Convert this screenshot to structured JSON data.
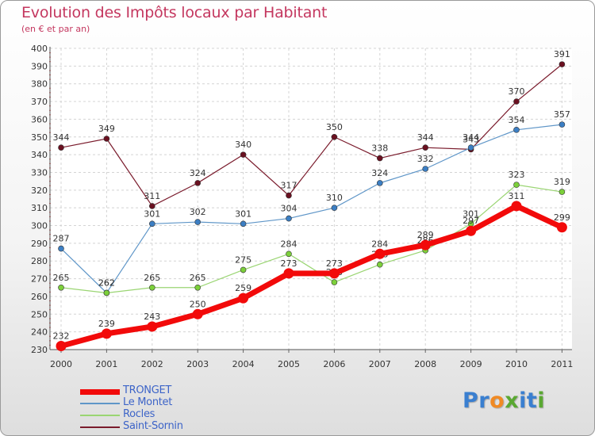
{
  "title": "Evolution des Impôts locaux par Habitant",
  "subtitle": "(en € et par an)",
  "logo": {
    "text": "Proxiti",
    "letters": [
      "P",
      "r",
      "o",
      "x",
      "i",
      "t",
      "i"
    ],
    "colors": [
      "#3a7fd0",
      "#3a7fd0",
      "#f08a24",
      "#5aa832",
      "#3a7fd0",
      "#3a7fd0",
      "#5aa832"
    ]
  },
  "chart_data": {
    "type": "line",
    "title": "Evolution des Impôts locaux par Habitant",
    "subtitle": "(en € et par an)",
    "xlabel": "",
    "ylabel": "",
    "categories": [
      "2000",
      "2001",
      "2002",
      "2003",
      "2004",
      "2005",
      "2006",
      "2007",
      "2008",
      "2009",
      "2010",
      "2011"
    ],
    "ylim": [
      230,
      400
    ],
    "yticks": [
      230,
      240,
      250,
      260,
      270,
      280,
      290,
      300,
      310,
      320,
      330,
      340,
      350,
      360,
      370,
      380,
      390,
      400
    ],
    "grid": true,
    "legend_position": "bottom-left",
    "series": [
      {
        "name": "Saint-Sornin",
        "color": "#7a1b2c",
        "dot": "#6a1020",
        "width": 1.2,
        "values": [
          344,
          349,
          311,
          324,
          340,
          317,
          350,
          338,
          344,
          343,
          370,
          391
        ]
      },
      {
        "name": "Le Montet",
        "color": "#5f96c8",
        "dot": "#3c7fc4",
        "width": 1.2,
        "values": [
          287,
          262,
          301,
          302,
          301,
          304,
          310,
          324,
          332,
          344,
          354,
          357
        ]
      },
      {
        "name": "Rocles",
        "color": "#9ad572",
        "dot": "#7cd03a",
        "width": 1.2,
        "values": [
          265,
          262,
          265,
          265,
          275,
          284,
          268,
          278,
          286,
          301,
          323,
          319
        ]
      },
      {
        "name": "TRONGET",
        "color": "#f20a0a",
        "dot": "#f20a0a",
        "width": 7,
        "values": [
          232,
          239,
          243,
          250,
          259,
          273,
          273,
          284,
          289,
          297,
          311,
          299
        ]
      }
    ],
    "legend_order": [
      "TRONGET",
      "Le Montet",
      "Rocles",
      "Saint-Sornin"
    ]
  }
}
